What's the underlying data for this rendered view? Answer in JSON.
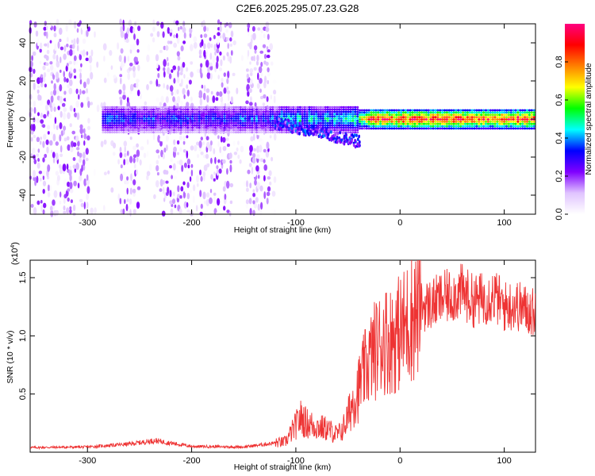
{
  "title": "C2E6.2025.295.07.23.G28",
  "chart_data": [
    {
      "type": "heatmap",
      "name": "spectrogram",
      "xlabel": "Height of straight line (km)",
      "ylabel": "Frequency (Hz)",
      "xlim": [
        -355,
        130
      ],
      "ylim": [
        -50,
        50
      ],
      "xticks": [
        -300,
        -200,
        -100,
        0,
        100
      ],
      "yticks": [
        -40,
        -20,
        0,
        20,
        40
      ],
      "grid": false,
      "colorbar": {
        "label": "Normalized spectral amplitude",
        "range": [
          0,
          1
        ],
        "ticks": [
          "0.0",
          "0.2",
          "0.4",
          "0.6",
          "0.8"
        ],
        "colormap": [
          "#ffffff",
          "#e0c4ff",
          "#8000ff",
          "#0000ff",
          "#00ffff",
          "#00ff00",
          "#ffff00",
          "#ff8000",
          "#ff0000",
          "#ff0080"
        ]
      },
      "features": {
        "noise_regions_x": [
          [
            -355,
            -300
          ],
          [
            -270,
            -250
          ],
          [
            -235,
            -200
          ],
          [
            -195,
            -160
          ],
          [
            -150,
            -125
          ]
        ],
        "carrier_band": {
          "x": [
            -285,
            130
          ],
          "center_hz": 0,
          "halfwidth_hz": 5
        },
        "doppler_tail_x": [
          -120,
          -40
        ]
      }
    },
    {
      "type": "line",
      "name": "snr",
      "xlabel": "Height of straight line (km)",
      "ylabel": "SNR (10 * v/v)",
      "multiplier_label": "(x10",
      "multiplier_exp": "4",
      "multiplier_close": ")",
      "xlim": [
        -355,
        130
      ],
      "ylim": [
        0,
        16500
      ],
      "xticks": [
        -300,
        -200,
        -100,
        0,
        100
      ],
      "yticks": [
        5000,
        10000,
        15000
      ],
      "ytick_labels": [
        "0.5",
        "1.0",
        "1.5"
      ],
      "color": "#ee3333",
      "grid": false,
      "x": [
        -355,
        -300,
        -260,
        -235,
        -200,
        -150,
        -110,
        -95,
        -90,
        -80,
        -70,
        -60,
        -55,
        -50,
        -45,
        -40,
        -35,
        -30,
        -25,
        -20,
        -15,
        -10,
        -5,
        0,
        5,
        10,
        20,
        30,
        40,
        50,
        60,
        70,
        80,
        90,
        100,
        110,
        120,
        130
      ],
      "values": [
        400,
        450,
        700,
        1000,
        500,
        450,
        900,
        3000,
        2500,
        2200,
        2000,
        1500,
        2000,
        3000,
        4500,
        5500,
        6800,
        7800,
        8700,
        9200,
        9800,
        9600,
        10000,
        10300,
        10800,
        11600,
        12500,
        12700,
        13200,
        13500,
        13800,
        13000,
        13200,
        13500,
        12500,
        12700,
        12300,
        12000
      ]
    }
  ]
}
